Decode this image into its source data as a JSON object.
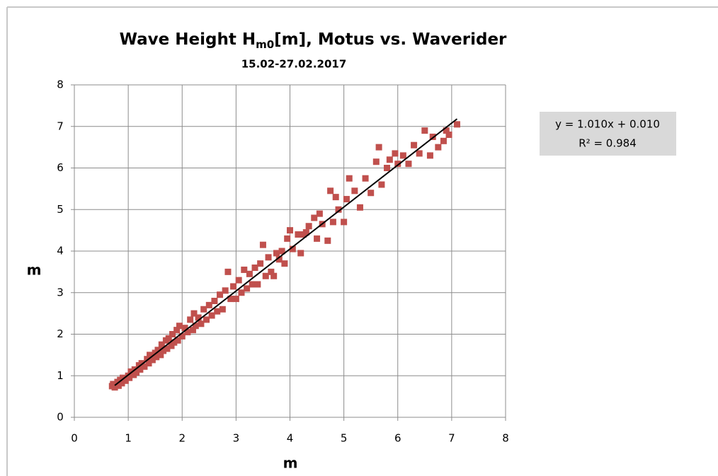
{
  "chart_data": {
    "type": "scatter",
    "title": {
      "main": "Wave Height H",
      "sub": "m0",
      "rest": "[m], Motus vs. Waverider"
    },
    "subtitle": "15.02-27.02.2017",
    "x_label": "m",
    "y_label": "m",
    "color": "#c0504d",
    "marker": "square",
    "grid": true,
    "xlim": [
      0,
      8
    ],
    "ylim": [
      0,
      8
    ],
    "xticks": [
      0,
      1,
      2,
      3,
      4,
      5,
      6,
      7,
      8
    ],
    "yticks": [
      0,
      1,
      2,
      3,
      4,
      5,
      6,
      7,
      8
    ],
    "x": [
      0.7,
      0.72,
      0.75,
      0.78,
      0.8,
      0.82,
      0.85,
      0.88,
      0.9,
      0.95,
      1.0,
      1.02,
      1.05,
      1.1,
      1.12,
      1.15,
      1.2,
      1.22,
      1.25,
      1.3,
      1.35,
      1.38,
      1.4,
      1.45,
      1.5,
      1.52,
      1.55,
      1.6,
      1.62,
      1.65,
      1.7,
      1.72,
      1.75,
      1.8,
      1.82,
      1.85,
      1.9,
      1.92,
      1.95,
      2.0,
      2.05,
      2.1,
      2.15,
      2.2,
      2.22,
      2.25,
      2.3,
      2.35,
      2.4,
      2.45,
      2.5,
      2.55,
      2.6,
      2.65,
      2.7,
      2.75,
      2.8,
      2.85,
      2.9,
      2.95,
      3.0,
      3.05,
      3.1,
      3.15,
      3.2,
      3.25,
      3.3,
      3.35,
      3.4,
      3.45,
      3.5,
      3.55,
      3.6,
      3.65,
      3.7,
      3.75,
      3.8,
      3.85,
      3.9,
      3.95,
      4.0,
      4.05,
      4.15,
      4.2,
      4.25,
      4.3,
      4.35,
      4.45,
      4.5,
      4.55,
      4.6,
      4.7,
      4.75,
      4.8,
      4.85,
      4.9,
      5.0,
      5.05,
      5.1,
      5.2,
      5.3,
      5.4,
      5.5,
      5.6,
      5.65,
      5.7,
      5.8,
      5.85,
      5.95,
      6.0,
      6.1,
      6.2,
      6.3,
      6.4,
      6.5,
      6.6,
      6.65,
      6.75,
      6.85,
      6.9,
      6.95,
      7.1
    ],
    "values": [
      0.75,
      0.8,
      0.72,
      0.78,
      0.85,
      0.76,
      0.9,
      0.82,
      0.95,
      0.88,
      1.0,
      0.95,
      1.1,
      1.02,
      1.15,
      1.08,
      1.25,
      1.15,
      1.3,
      1.22,
      1.4,
      1.3,
      1.5,
      1.38,
      1.55,
      1.45,
      1.62,
      1.5,
      1.75,
      1.6,
      1.85,
      1.65,
      1.9,
      1.72,
      2.0,
      1.8,
      2.1,
      1.85,
      2.2,
      1.95,
      2.15,
      2.05,
      2.35,
      2.1,
      2.5,
      2.2,
      2.4,
      2.25,
      2.6,
      2.35,
      2.7,
      2.45,
      2.8,
      2.55,
      2.95,
      2.6,
      3.05,
      3.5,
      2.85,
      3.15,
      2.85,
      3.3,
      3.0,
      3.55,
      3.1,
      3.45,
      3.2,
      3.6,
      3.2,
      3.7,
      4.15,
      3.4,
      3.85,
      3.5,
      3.4,
      3.95,
      3.8,
      4.0,
      3.7,
      4.3,
      4.5,
      4.05,
      4.4,
      3.95,
      4.4,
      4.45,
      4.6,
      4.8,
      4.3,
      4.9,
      4.65,
      4.25,
      5.45,
      4.7,
      5.3,
      5.0,
      4.7,
      5.25,
      5.75,
      5.45,
      5.05,
      5.75,
      5.4,
      6.15,
      6.5,
      5.6,
      6.0,
      6.2,
      6.35,
      6.1,
      6.3,
      6.1,
      6.55,
      6.35,
      6.9,
      6.3,
      6.75,
      6.5,
      6.65,
      6.9,
      6.8,
      7.05
    ],
    "trendline": {
      "x": [
        0.75,
        7.1
      ],
      "y": [
        0.7675,
        7.181
      ],
      "color": "#000000",
      "label": "y = 1.010x + 0.010",
      "r2_label": "R² = 0.984"
    }
  }
}
